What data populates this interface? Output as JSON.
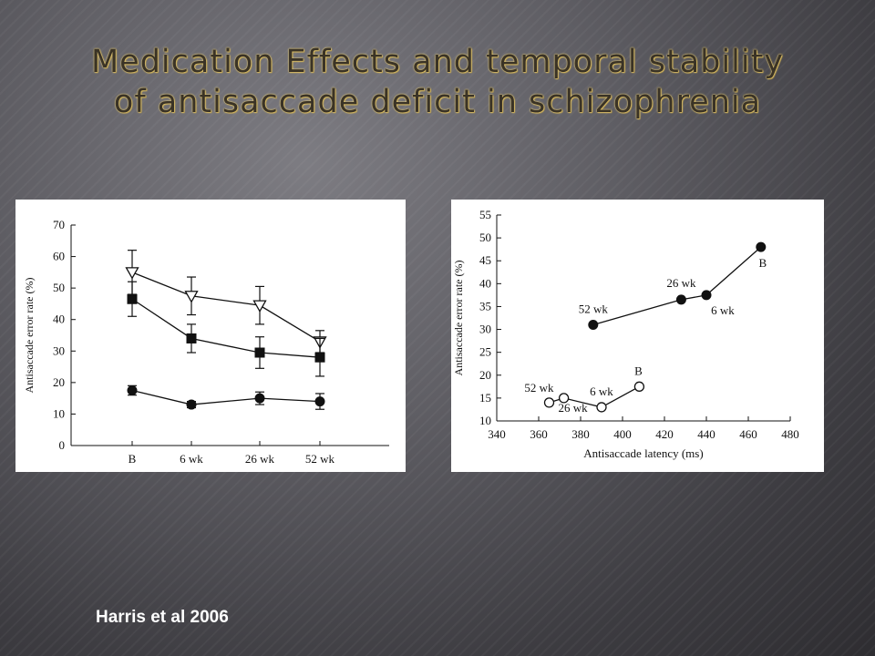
{
  "slide": {
    "title_line1": "Medication Effects and temporal stability",
    "title_line2": "of antisaccade deficit in schizophrenia",
    "citation": "Harris et al 2006"
  },
  "chart_data": [
    {
      "type": "line",
      "xlabel": "",
      "ylabel": "Antisaccade error rate (%)",
      "categories": [
        "B",
        "6 wk",
        "26 wk",
        "52 wk"
      ],
      "ylim": [
        0,
        70
      ],
      "yticks": [
        0,
        10,
        20,
        30,
        40,
        50,
        60,
        70
      ],
      "legend": "none",
      "series": [
        {
          "marker": "triangle-down-open",
          "values": [
            55,
            47.5,
            44.5,
            33
          ],
          "error": [
            7,
            6,
            6,
            3.5
          ]
        },
        {
          "marker": "square-filled",
          "values": [
            46.5,
            34,
            29.5,
            28
          ],
          "error": [
            5.5,
            4.5,
            5,
            6
          ]
        },
        {
          "marker": "circle-filled",
          "values": [
            17.5,
            13,
            15,
            14
          ],
          "error": [
            1.5,
            1,
            2,
            2.5
          ]
        }
      ]
    },
    {
      "type": "scatter",
      "xlabel": "Antisaccade latency (ms)",
      "ylabel": "Antisaccade error rate (%)",
      "xlim": [
        340,
        480
      ],
      "xticks": [
        340,
        360,
        380,
        400,
        420,
        440,
        460,
        480
      ],
      "ylim": [
        10,
        55
      ],
      "yticks": [
        10,
        15,
        20,
        25,
        30,
        35,
        40,
        45,
        50,
        55
      ],
      "legend": "none",
      "series": [
        {
          "marker": "circle-filled",
          "points": [
            {
              "x": 386,
              "y": 31,
              "label": "52 wk"
            },
            {
              "x": 428,
              "y": 36.5,
              "label": "26 wk"
            },
            {
              "x": 440,
              "y": 37.5,
              "label": "6 wk"
            },
            {
              "x": 466,
              "y": 48,
              "label": "B"
            }
          ]
        },
        {
          "marker": "circle-open",
          "points": [
            {
              "x": 365,
              "y": 14,
              "label": "52 wk"
            },
            {
              "x": 372,
              "y": 15,
              "label": "26 wk"
            },
            {
              "x": 390,
              "y": 13,
              "label": "6 wk"
            },
            {
              "x": 408,
              "y": 17.5,
              "label": "B"
            }
          ]
        }
      ]
    }
  ]
}
